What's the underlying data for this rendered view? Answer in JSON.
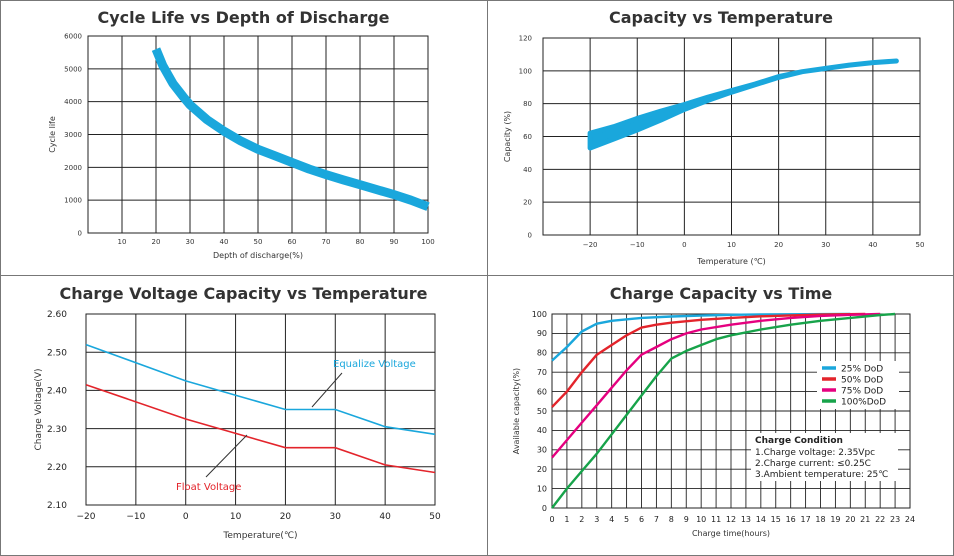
{
  "chart_data": [
    {
      "type": "line",
      "title": "Cycle Life vs Depth of Discharge",
      "xlabel": "Depth of discharge(%)",
      "ylabel": "Cycle life",
      "xlim": [
        0,
        100
      ],
      "ylim": [
        0,
        6000
      ],
      "xticks": [
        10,
        20,
        30,
        40,
        50,
        60,
        70,
        80,
        90,
        100
      ],
      "yticks": [
        0,
        1000,
        2000,
        3000,
        4000,
        5000,
        6000
      ],
      "grid": true,
      "color": "#1aa7dc",
      "series": [
        {
          "x": [
            20,
            22,
            25,
            28,
            30,
            35,
            40,
            45,
            50,
            55,
            60,
            65,
            70,
            75,
            80,
            85,
            90,
            95,
            100
          ],
          "y": [
            5600,
            5100,
            4550,
            4150,
            3900,
            3450,
            3100,
            2800,
            2550,
            2350,
            2150,
            1950,
            1780,
            1620,
            1470,
            1320,
            1170,
            1000,
            800
          ]
        }
      ]
    },
    {
      "type": "area",
      "title": "Capacity vs Temperature",
      "xlabel": "Temperature (℃)",
      "ylabel": "Capacity (%)",
      "xlim": [
        -30,
        50
      ],
      "ylim": [
        0,
        120
      ],
      "xticks": [
        -20,
        -10,
        0,
        10,
        20,
        30,
        40,
        50
      ],
      "yticks": [
        0,
        20,
        40,
        60,
        80,
        100,
        120
      ],
      "grid": true,
      "color": "#1aa7dc",
      "series": [
        {
          "x": [
            -20,
            -15,
            -10,
            -5,
            0,
            5,
            10,
            15,
            20,
            25,
            30,
            35,
            40,
            45
          ],
          "upper": [
            62,
            66,
            71,
            75.5,
            79.5,
            84,
            88,
            92,
            96.5,
            99.5,
            101.5,
            103.5,
            105,
            106
          ],
          "lower": [
            53,
            58.5,
            64,
            70,
            76.5,
            82,
            87,
            91.5,
            96,
            99.5,
            101.5,
            103.5,
            105,
            106
          ]
        }
      ]
    },
    {
      "type": "line",
      "title": "Charge Voltage  Capacity  vs  Temperature",
      "xlabel": "Temperature(℃)",
      "ylabel": "Charge Voltage(V)",
      "xlim": [
        -20,
        50
      ],
      "ylim": [
        2.1,
        2.6
      ],
      "xticks": [
        -20,
        -10,
        0,
        10,
        20,
        30,
        40,
        50
      ],
      "yticks": [
        "2.10",
        "2.20",
        "2.30",
        "2.40",
        "2.50",
        "2.60"
      ],
      "grid": true,
      "series": [
        {
          "name": "Equalize  Voltage",
          "color": "#1aa7dc",
          "x": [
            -20,
            0,
            20,
            30,
            40,
            50
          ],
          "y": [
            2.52,
            2.425,
            2.35,
            2.35,
            2.305,
            2.285
          ]
        },
        {
          "name": "Float  Voltage",
          "color": "#e3242b",
          "x": [
            -20,
            0,
            20,
            30,
            40,
            50
          ],
          "y": [
            2.415,
            2.325,
            2.25,
            2.25,
            2.205,
            2.185
          ]
        }
      ],
      "annotations": [
        {
          "text": "Equalize  Voltage",
          "color": "#1aa7dc"
        },
        {
          "text": "Float  Voltage",
          "color": "#e3242b"
        }
      ]
    },
    {
      "type": "line",
      "title": "Charge  Capacity  vs  Time",
      "xlabel": "Charge time(hours)",
      "ylabel": "Available capacity(%)",
      "xlim": [
        0,
        24
      ],
      "ylim": [
        0,
        100
      ],
      "xticks": [
        0,
        1,
        2,
        3,
        4,
        5,
        6,
        7,
        8,
        9,
        10,
        11,
        12,
        13,
        14,
        15,
        16,
        17,
        18,
        19,
        20,
        21,
        22,
        23,
        24
      ],
      "yticks": [
        0,
        10,
        20,
        30,
        40,
        50,
        60,
        70,
        80,
        90,
        100
      ],
      "grid": true,
      "legend": "right",
      "series": [
        {
          "name": "25%  DoD",
          "color": "#1aa7dc",
          "x": [
            0,
            1,
            2,
            3,
            4,
            6,
            8,
            10,
            12,
            14,
            20
          ],
          "y": [
            76,
            83,
            91,
            95,
            96.5,
            98,
            98.7,
            99.2,
            99.6,
            99.8,
            100
          ]
        },
        {
          "name": "50%  DoD",
          "color": "#e3242b",
          "x": [
            0,
            1,
            2,
            3,
            4,
            5,
            6,
            7,
            8,
            10,
            12,
            14,
            16,
            18,
            21
          ],
          "y": [
            52,
            60,
            70,
            79,
            84,
            89,
            93,
            94.5,
            95.5,
            97,
            98,
            98.8,
            99.3,
            99.7,
            100
          ]
        },
        {
          "name": "75%  DoD",
          "color": "#e5007f",
          "x": [
            0,
            1,
            2,
            3,
            4,
            5,
            6,
            7,
            8,
            9,
            10,
            12,
            14,
            16,
            18,
            20,
            22
          ],
          "y": [
            26,
            35,
            44,
            53,
            62,
            71,
            79,
            83,
            87,
            90,
            92,
            94.5,
            96.5,
            98,
            99,
            99.6,
            100
          ]
        },
        {
          "name": "100%DoD",
          "color": "#17a34a",
          "x": [
            0,
            1,
            2,
            3,
            4,
            5,
            6,
            7,
            8,
            9,
            10,
            11,
            12,
            14,
            16,
            18,
            20,
            22,
            23
          ],
          "y": [
            0,
            10,
            19,
            28,
            38,
            48,
            58,
            68,
            77,
            81,
            84,
            87,
            89,
            92,
            94.5,
            96.5,
            98,
            99.5,
            100
          ]
        }
      ],
      "annotation_box": {
        "title": "Charge Condition",
        "lines": [
          "1.Charge voltage: 2.35Vpc",
          "2.Charge current: ≤0.25C",
          "3.Ambient temperature: 25℃"
        ]
      }
    }
  ]
}
